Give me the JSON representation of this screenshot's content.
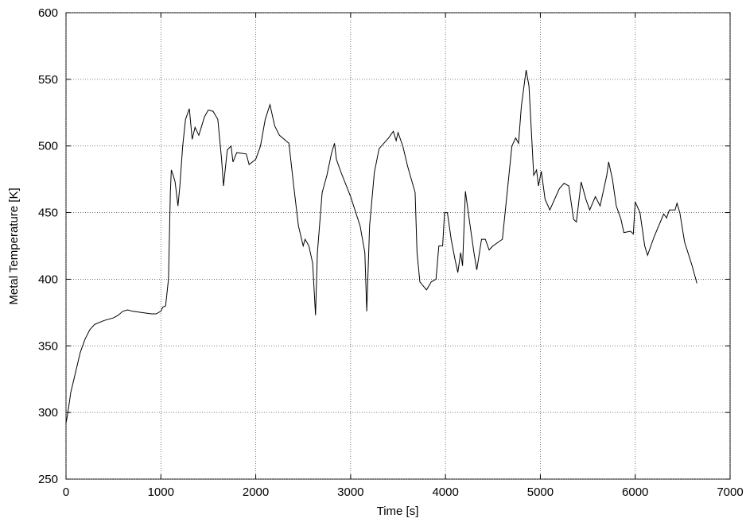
{
  "chart_data": {
    "type": "line",
    "x_label": "Time [s]",
    "y_label": "Metal Temperature [K]",
    "xlim": [
      0,
      7000
    ],
    "xticks": [
      0,
      1000,
      2000,
      3000,
      4000,
      5000,
      6000,
      7000
    ],
    "ylim": [
      250,
      600
    ],
    "yticks": [
      250,
      300,
      350,
      400,
      450,
      500,
      550,
      600
    ],
    "grid": true,
    "color": "#000000",
    "x": [
      0,
      20,
      50,
      100,
      150,
      200,
      250,
      300,
      400,
      500,
      550,
      600,
      650,
      700,
      800,
      900,
      950,
      1000,
      1020,
      1050,
      1080,
      1100,
      1110,
      1130,
      1150,
      1180,
      1200,
      1230,
      1260,
      1300,
      1330,
      1360,
      1400,
      1430,
      1460,
      1500,
      1550,
      1600,
      1640,
      1660,
      1700,
      1740,
      1760,
      1800,
      1900,
      1930,
      2000,
      2050,
      2100,
      2150,
      2200,
      2250,
      2350,
      2400,
      2450,
      2500,
      2520,
      2560,
      2600,
      2630,
      2650,
      2700,
      2750,
      2800,
      2830,
      2850,
      2900,
      3000,
      3100,
      3150,
      3170,
      3200,
      3250,
      3300,
      3400,
      3450,
      3480,
      3500,
      3550,
      3600,
      3680,
      3700,
      3730,
      3800,
      3850,
      3900,
      3930,
      3970,
      3990,
      4020,
      4060,
      4100,
      4130,
      4160,
      4180,
      4210,
      4250,
      4300,
      4330,
      4380,
      4420,
      4460,
      4500,
      4600,
      4650,
      4700,
      4740,
      4770,
      4800,
      4850,
      4880,
      4930,
      4960,
      4980,
      5010,
      5050,
      5100,
      5200,
      5250,
      5300,
      5350,
      5380,
      5430,
      5480,
      5520,
      5580,
      5630,
      5700,
      5720,
      5760,
      5800,
      5850,
      5880,
      5950,
      5980,
      6000,
      6050,
      6100,
      6130,
      6200,
      6300,
      6330,
      6360,
      6420,
      6440,
      6470,
      6520,
      6600,
      6650
    ],
    "series": [
      {
        "name": "Metal Temperature",
        "color": "#000000",
        "values": [
          292,
          300,
          315,
          330,
          345,
          355,
          362,
          366,
          369,
          371,
          373,
          376,
          377,
          376,
          375,
          374,
          374,
          376,
          379,
          380,
          400,
          465,
          482,
          478,
          473,
          455,
          470,
          500,
          520,
          528,
          505,
          514,
          508,
          515,
          522,
          527,
          526,
          520,
          490,
          470,
          497,
          500,
          488,
          495,
          494,
          486,
          490,
          500,
          520,
          531,
          515,
          508,
          502,
          470,
          440,
          425,
          430,
          425,
          412,
          373,
          420,
          465,
          478,
          495,
          502,
          490,
          480,
          462,
          440,
          420,
          376,
          440,
          480,
          498,
          506,
          511,
          504,
          510,
          500,
          485,
          465,
          420,
          398,
          392,
          398,
          400,
          425,
          425,
          450,
          450,
          430,
          415,
          405,
          420,
          410,
          466,
          445,
          420,
          407,
          430,
          430,
          422,
          425,
          430,
          465,
          500,
          506,
          502,
          530,
          557,
          545,
          478,
          482,
          470,
          481,
          460,
          452,
          468,
          472,
          470,
          445,
          443,
          473,
          460,
          452,
          462,
          455,
          478,
          488,
          475,
          455,
          445,
          435,
          436,
          434,
          458,
          450,
          425,
          418,
          432,
          449,
          446,
          452,
          452,
          457,
          450,
          428,
          410,
          397
        ]
      }
    ]
  }
}
